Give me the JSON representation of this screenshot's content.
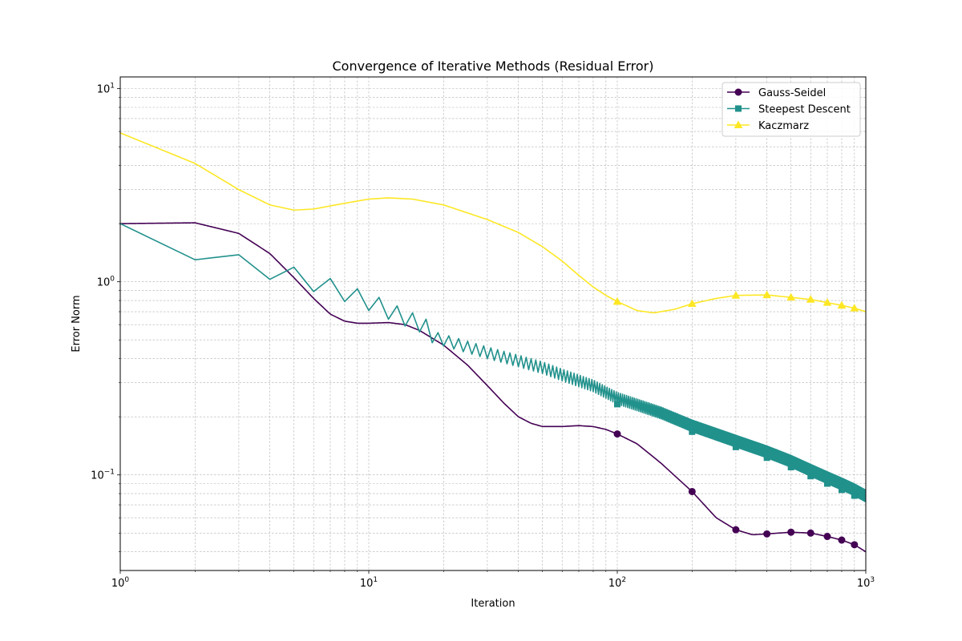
{
  "chart_data": {
    "type": "line",
    "title": "Convergence of Iterative Methods (Residual Error)",
    "xlabel": "Iteration",
    "ylabel": "Error Norm",
    "xscale": "log",
    "yscale": "log",
    "xlim": [
      1,
      1000
    ],
    "ylim": [
      0.032,
      11.5
    ],
    "x_ticks": [
      {
        "value": 1,
        "base": "10",
        "exp": "0"
      },
      {
        "value": 10,
        "base": "10",
        "exp": "1"
      },
      {
        "value": 100,
        "base": "10",
        "exp": "2"
      },
      {
        "value": 1000,
        "base": "10",
        "exp": "3"
      }
    ],
    "y_ticks": [
      {
        "value": 0.1,
        "base": "10",
        "exp": "−1"
      },
      {
        "value": 1,
        "base": "10",
        "exp": "0"
      },
      {
        "value": 10,
        "base": "10",
        "exp": "1"
      }
    ],
    "grid": true,
    "legend_position": "top-right",
    "series": [
      {
        "name": "Gauss-Seidel",
        "color": "#440154",
        "marker": "circle",
        "marker_x": [
          100,
          200,
          300,
          400,
          500,
          600,
          700,
          800,
          900
        ],
        "points": [
          [
            1,
            2.0
          ],
          [
            2,
            2.02
          ],
          [
            3,
            1.78
          ],
          [
            4,
            1.4
          ],
          [
            5,
            1.05
          ],
          [
            6,
            0.82
          ],
          [
            7,
            0.68
          ],
          [
            8,
            0.625
          ],
          [
            9,
            0.61
          ],
          [
            10,
            0.61
          ],
          [
            12,
            0.615
          ],
          [
            14,
            0.6
          ],
          [
            16,
            0.56
          ],
          [
            20,
            0.47
          ],
          [
            25,
            0.37
          ],
          [
            30,
            0.29
          ],
          [
            35,
            0.235
          ],
          [
            40,
            0.2
          ],
          [
            45,
            0.185
          ],
          [
            50,
            0.178
          ],
          [
            60,
            0.178
          ],
          [
            70,
            0.18
          ],
          [
            80,
            0.178
          ],
          [
            90,
            0.172
          ],
          [
            100,
            0.163
          ],
          [
            120,
            0.145
          ],
          [
            150,
            0.115
          ],
          [
            200,
            0.082
          ],
          [
            250,
            0.06
          ],
          [
            300,
            0.052
          ],
          [
            350,
            0.049
          ],
          [
            400,
            0.0495
          ],
          [
            500,
            0.0505
          ],
          [
            600,
            0.05
          ],
          [
            700,
            0.048
          ],
          [
            800,
            0.046
          ],
          [
            900,
            0.0435
          ],
          [
            1000,
            0.04
          ]
        ]
      },
      {
        "name": "Steepest Descent",
        "color": "#21918c",
        "marker": "square",
        "marker_x": [
          100,
          200,
          300,
          400,
          500,
          600,
          700,
          800,
          900
        ],
        "oscillate_from": 6,
        "amplitude": 0.07,
        "points": [
          [
            1,
            2.0
          ],
          [
            2,
            1.3
          ],
          [
            3,
            1.38
          ],
          [
            4,
            1.03
          ],
          [
            5,
            1.19
          ],
          [
            6,
            0.89
          ],
          [
            7,
            1.04
          ],
          [
            8,
            0.79
          ],
          [
            9,
            0.92
          ],
          [
            10,
            0.71
          ],
          [
            11,
            0.83
          ],
          [
            12,
            0.64
          ],
          [
            13,
            0.75
          ],
          [
            14,
            0.59
          ],
          [
            15,
            0.69
          ],
          [
            16,
            0.55
          ],
          [
            17,
            0.64
          ],
          [
            18,
            0.52
          ],
          [
            20,
            0.5
          ],
          [
            25,
            0.46
          ],
          [
            30,
            0.43
          ],
          [
            40,
            0.39
          ],
          [
            50,
            0.36
          ],
          [
            60,
            0.33
          ],
          [
            80,
            0.29
          ],
          [
            100,
            0.25
          ],
          [
            150,
            0.21
          ],
          [
            200,
            0.18
          ],
          [
            300,
            0.15
          ],
          [
            400,
            0.132
          ],
          [
            500,
            0.118
          ],
          [
            600,
            0.106
          ],
          [
            700,
            0.097
          ],
          [
            800,
            0.09
          ],
          [
            900,
            0.084
          ],
          [
            1000,
            0.078
          ]
        ]
      },
      {
        "name": "Kaczmarz",
        "color": "#fde725",
        "marker": "triangle",
        "marker_x": [
          100,
          200,
          300,
          400,
          500,
          600,
          700,
          800,
          900
        ],
        "points": [
          [
            1,
            5.9
          ],
          [
            2,
            4.1
          ],
          [
            3,
            3.0
          ],
          [
            4,
            2.5
          ],
          [
            5,
            2.35
          ],
          [
            6,
            2.38
          ],
          [
            8,
            2.55
          ],
          [
            10,
            2.68
          ],
          [
            12,
            2.72
          ],
          [
            15,
            2.68
          ],
          [
            20,
            2.5
          ],
          [
            30,
            2.1
          ],
          [
            40,
            1.8
          ],
          [
            50,
            1.52
          ],
          [
            60,
            1.28
          ],
          [
            70,
            1.08
          ],
          [
            80,
            0.94
          ],
          [
            90,
            0.85
          ],
          [
            100,
            0.79
          ],
          [
            120,
            0.71
          ],
          [
            140,
            0.69
          ],
          [
            170,
            0.72
          ],
          [
            200,
            0.77
          ],
          [
            250,
            0.82
          ],
          [
            300,
            0.85
          ],
          [
            400,
            0.855
          ],
          [
            500,
            0.83
          ],
          [
            600,
            0.81
          ],
          [
            700,
            0.78
          ],
          [
            800,
            0.755
          ],
          [
            900,
            0.73
          ],
          [
            1000,
            0.7
          ]
        ]
      }
    ]
  }
}
